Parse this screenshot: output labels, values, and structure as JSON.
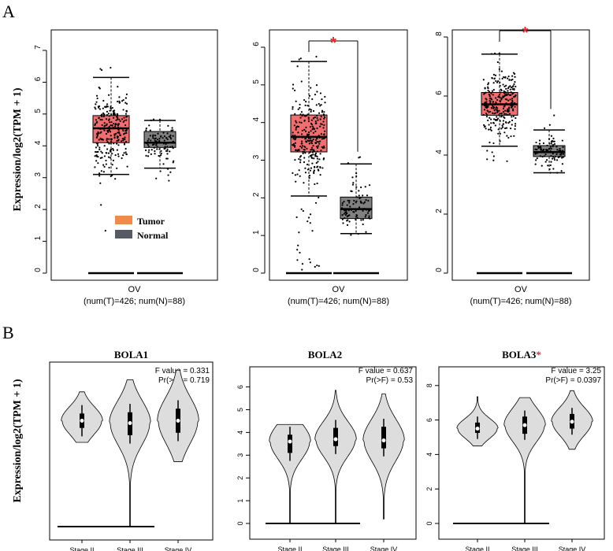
{
  "panel_labels": {
    "a": "A",
    "b": "B"
  },
  "ylabel": "Expression/log2(TPM + 1)",
  "legend": {
    "tumor": "Tumor",
    "normal": "Normal"
  },
  "colors": {
    "tumor": "#f26d6d",
    "normal": "#808080",
    "legend_tumor": "#f08a4b",
    "legend_normal": "#555a63",
    "star": "#e8262b",
    "violin": "#dddddd"
  },
  "chart_data": [
    {
      "type": "box",
      "panel": "A",
      "xlabel": "OV",
      "xsub": "(num(T)=426; num(N)=88)",
      "ylim": [
        0,
        7
      ],
      "yticks": [
        0,
        1,
        2,
        3,
        4,
        5,
        6,
        7
      ],
      "significant": false,
      "groups": [
        {
          "name": "Tumor",
          "min": 3.1,
          "q1": 4.1,
          "median": 4.55,
          "q3": 4.95,
          "max": 6.15,
          "pmin": 0.95,
          "pmax": 6.55
        },
        {
          "name": "Normal",
          "min": 3.3,
          "q1": 3.95,
          "median": 4.1,
          "q3": 4.45,
          "max": 4.8,
          "pmin": 2.85,
          "pmax": 4.85
        }
      ]
    },
    {
      "type": "box",
      "panel": "A",
      "xlabel": "OV",
      "xsub": "(num(T)=426; num(N)=88)",
      "ylim": [
        0,
        6
      ],
      "yticks": [
        0,
        1,
        2,
        3,
        4,
        5,
        6
      ],
      "significant": true,
      "star": "*",
      "groups": [
        {
          "name": "Tumor",
          "min": 2.05,
          "q1": 3.22,
          "median": 3.62,
          "q3": 4.2,
          "max": 5.62,
          "pmin": 0.0,
          "pmax": 5.92
        },
        {
          "name": "Normal",
          "min": 1.05,
          "q1": 1.45,
          "median": 1.7,
          "q3": 2.02,
          "max": 2.9,
          "pmin": 1.0,
          "pmax": 3.1
        }
      ]
    },
    {
      "type": "box",
      "panel": "A",
      "xlabel": "OV",
      "xsub": "(num(T)=426; num(N)=88)",
      "ylim": [
        0,
        8
      ],
      "yticks": [
        0,
        2,
        4,
        6,
        8
      ],
      "significant": true,
      "star": "*",
      "groups": [
        {
          "name": "Tumor",
          "min": 4.3,
          "q1": 5.35,
          "median": 5.72,
          "q3": 6.12,
          "max": 7.42,
          "pmin": 3.7,
          "pmax": 7.55
        },
        {
          "name": "Normal",
          "min": 3.4,
          "q1": 3.95,
          "median": 4.1,
          "q3": 4.32,
          "max": 4.85,
          "pmin": 3.4,
          "pmax": 5.4
        }
      ]
    },
    {
      "type": "violin",
      "panel": "B",
      "title": "BOLA1",
      "title_star": "",
      "f_value": "F value = 0.331",
      "pr": "Pr(>F) = 0.719",
      "ylim": [
        0,
        7
      ],
      "yticks": [],
      "categories": [
        "Stage II",
        "Stage III",
        "Stage IV"
      ],
      "violins": [
        {
          "min": 3.5,
          "max": 5.6,
          "q1": 4.1,
          "median": 4.4,
          "q3": 4.7
        },
        {
          "min": 0.0,
          "max": 6.1,
          "q1": 3.8,
          "median": 4.3,
          "q3": 4.75
        },
        {
          "min": 2.7,
          "max": 6.5,
          "q1": 3.9,
          "median": 4.4,
          "q3": 4.9
        }
      ]
    },
    {
      "type": "violin",
      "panel": "B",
      "title": "BOLA2",
      "title_star": "",
      "f_value": "F value = 0.637",
      "pr": "Pr(>F) = 0.53",
      "ylim": [
        0,
        6.4
      ],
      "yticks": [
        0,
        1,
        2,
        3,
        4,
        5,
        6
      ],
      "categories": [
        "Stage II",
        "Stage III",
        "Stage IV"
      ],
      "violins": [
        {
          "min": 0.0,
          "max": 4.35,
          "q1": 3.1,
          "median": 3.6,
          "q3": 3.9
        },
        {
          "min": 0.0,
          "max": 5.85,
          "q1": 3.4,
          "median": 3.7,
          "q3": 4.2
        },
        {
          "min": 0.2,
          "max": 5.7,
          "q1": 3.3,
          "median": 3.65,
          "q3": 4.25
        }
      ]
    },
    {
      "type": "violin",
      "panel": "B",
      "title": "BOLA3",
      "title_star": "*",
      "f_value": "F value = 3.25",
      "pr": "Pr(>F) = 0.0397",
      "ylim": [
        0,
        8.4
      ],
      "yticks": [
        0,
        2,
        4,
        6,
        8
      ],
      "categories": [
        "Stage II",
        "Stage III",
        "Stage IV"
      ],
      "violins": [
        {
          "min": 4.5,
          "max": 7.35,
          "q1": 5.25,
          "median": 5.5,
          "q3": 5.85
        },
        {
          "min": 0.0,
          "max": 7.3,
          "q1": 5.2,
          "median": 5.7,
          "q3": 6.2
        },
        {
          "min": 4.3,
          "max": 7.7,
          "q1": 5.5,
          "median": 5.9,
          "q3": 6.35
        }
      ]
    }
  ]
}
